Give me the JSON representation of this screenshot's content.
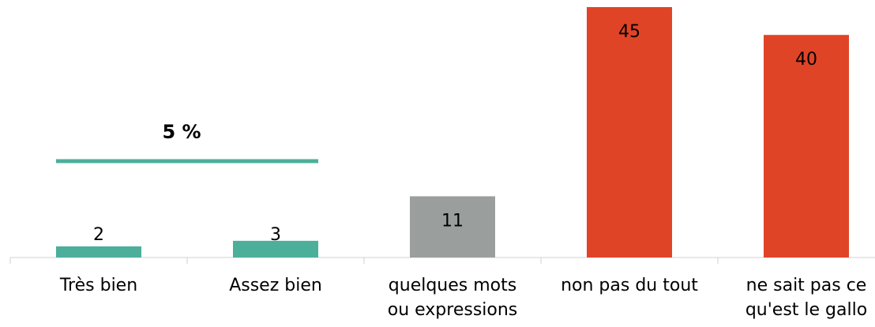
{
  "chart_data": {
    "type": "bar",
    "categories": [
      "Très bien",
      "Assez bien",
      "quelques mots\nou expressions",
      "non pas du tout",
      "ne sait pas ce\nqu'est le gallo"
    ],
    "values": [
      2,
      3,
      11,
      45,
      40
    ],
    "colors": [
      "#4caf9a",
      "#4caf9a",
      "#9a9e9c",
      "#e04427",
      "#e04427"
    ],
    "ylim": [
      0,
      45
    ],
    "annotation": {
      "text": "5 %",
      "from": 0,
      "to": 1,
      "color": "#4caf9a"
    }
  }
}
